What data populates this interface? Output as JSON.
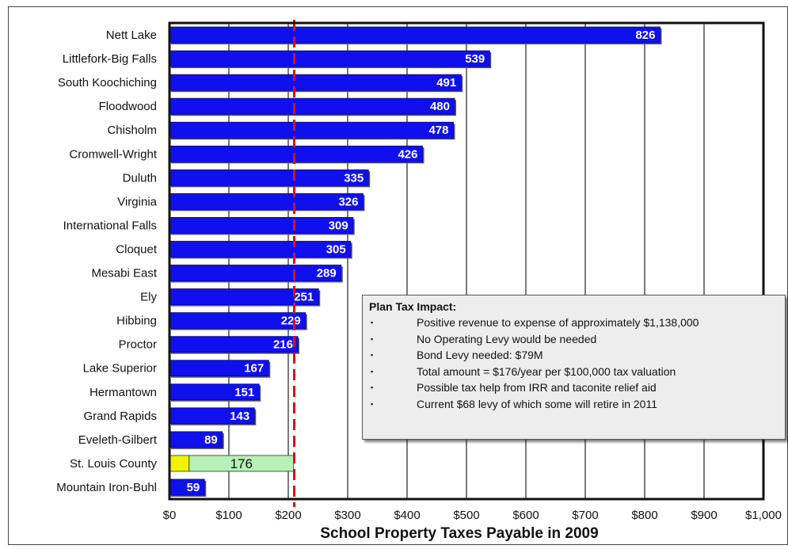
{
  "chart_data": {
    "type": "bar",
    "orientation": "horizontal",
    "xlabel": "School Property Taxes Payable in 2009",
    "xlim": [
      0,
      1000
    ],
    "xticks": [
      "$0",
      "$100",
      "$200",
      "$300",
      "$400",
      "$500",
      "$600",
      "$700",
      "$800",
      "$900",
      "$1,000"
    ],
    "grid": true,
    "reference_line": {
      "value": 210,
      "color": "#e01010",
      "style": "dashed"
    },
    "bar_color": "#1010ee",
    "categories": [
      "Nett Lake",
      "Littlefork-Big Falls",
      "South Koochiching",
      "Floodwood",
      "Chisholm",
      "Cromwell-Wright",
      "Duluth",
      "Virginia",
      "International Falls",
      "Cloquet",
      "Mesabi East",
      "Ely",
      "Hibbing",
      "Proctor",
      "Lake Superior",
      "Hermantown",
      "Grand Rapids",
      "Eveleth-Gilbert",
      "St. Louis County",
      "Mountain Iron-Buhl"
    ],
    "values": [
      826,
      539,
      491,
      480,
      478,
      426,
      335,
      326,
      309,
      305,
      289,
      251,
      229,
      216,
      167,
      151,
      143,
      89,
      null,
      59
    ],
    "labels": [
      "826",
      "539",
      "491",
      "480",
      "478",
      "426",
      "335",
      "326",
      "309",
      "305",
      "289",
      "251",
      "229",
      "216",
      "167",
      "151",
      "143",
      "89",
      "",
      "59"
    ],
    "stacked_bar": {
      "category": "St. Louis County",
      "segments": [
        {
          "value": 33,
          "color": "#f2f200",
          "label": ""
        },
        {
          "value": 176,
          "color": "#b8f0b8",
          "label": "176"
        }
      ]
    }
  },
  "note": {
    "title": "Plan Tax Impact:",
    "items": [
      "Positive revenue to expense of approximately  $1,138,000",
      "No Operating Levy would be needed",
      "Bond Levy needed:  $79M",
      "Total amount = $176/year per $100,000  tax valuation",
      "Possible tax help from IRR and taconite relief aid",
      "Current $68 levy of which some will retire in 2011"
    ]
  }
}
